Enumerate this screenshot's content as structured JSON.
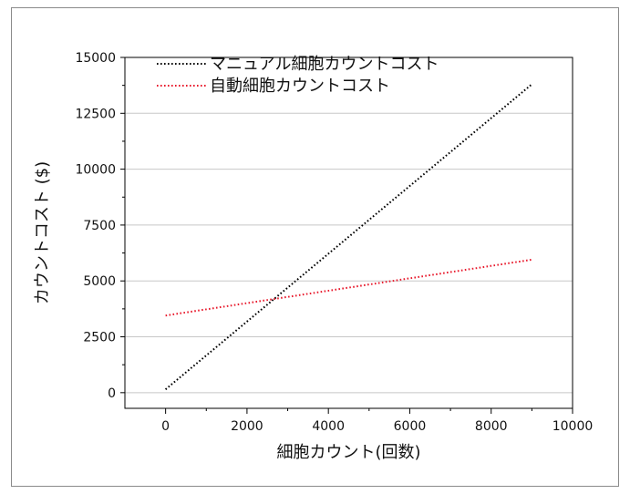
{
  "chart_data": {
    "type": "line",
    "xlabel": "細胞カウント(回数)",
    "ylabel": "カウントコスト ($)",
    "xlim": [
      -1000,
      10000
    ],
    "ylim": [
      -700,
      15000
    ],
    "xticks": [
      0,
      2000,
      4000,
      6000,
      8000,
      10000
    ],
    "yticks": [
      0,
      2500,
      5000,
      7500,
      10000,
      12500,
      15000
    ],
    "grid": "horizontal",
    "legend_position": "top-left",
    "series": [
      {
        "name": "マニュアル細胞カウントコスト",
        "color": "#000000",
        "style": "dotted",
        "x": [
          0,
          9000
        ],
        "y": [
          150,
          13800
        ]
      },
      {
        "name": "自動細胞カウントコスト",
        "color": "#e8192c",
        "style": "dotted",
        "x": [
          0,
          9000
        ],
        "y": [
          3450,
          5950
        ]
      }
    ]
  }
}
